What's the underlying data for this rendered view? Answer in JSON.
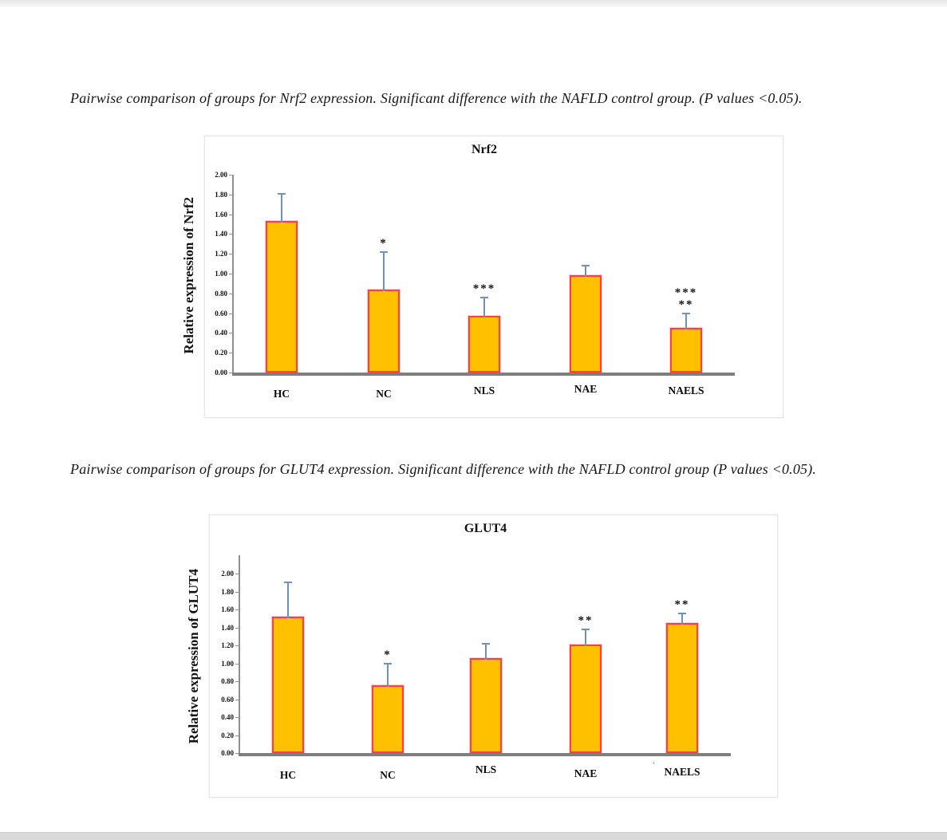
{
  "page": {
    "captions": {
      "nrf2": "Pairwise comparison of groups for Nrf2 expression. Significant difference with the NAFLD control group. (P values <0.05).",
      "glut4": "Pairwise comparison of groups for GLUT4 expression. Significant difference with the NAFLD control group (P values <0.05)."
    },
    "stray_mark": "."
  },
  "chart_data": [
    {
      "type": "bar",
      "title": "Nrf2",
      "ylabel": "Relative expression of Nrf2",
      "xlabel": "",
      "categories": [
        "HC",
        "NC",
        "NLS",
        "NAE",
        "NAELS"
      ],
      "values": [
        1.53,
        0.84,
        0.57,
        0.98,
        0.45
      ],
      "errors_up": [
        0.28,
        0.38,
        0.19,
        0.1,
        0.15
      ],
      "significance": [
        [],
        [
          "*"
        ],
        [
          "***"
        ],
        [],
        [
          "***",
          "**"
        ]
      ],
      "ylim": [
        0,
        2.0
      ],
      "ytick_step": 0.2,
      "ytick_labels": [
        "0.00",
        "0.20",
        "0.40",
        "0.60",
        "0.80",
        "1.00",
        "1.20",
        "1.40",
        "1.60",
        "1.80",
        "2.00"
      ],
      "grid": false,
      "legend": null,
      "bar_color": "#FFC000",
      "bar_border_color": "#FF4040",
      "error_bar_color": "#7390B6"
    },
    {
      "type": "bar",
      "title": "GLUT4",
      "ylabel": "Relative expression of GLUT4",
      "xlabel": "",
      "categories": [
        "HC",
        "NC",
        "NLS",
        "NAE",
        "NAELS"
      ],
      "values": [
        1.52,
        0.76,
        1.06,
        1.21,
        1.45
      ],
      "errors_up": [
        0.38,
        0.24,
        0.16,
        0.17,
        0.11
      ],
      "significance": [
        [],
        [
          "*"
        ],
        [],
        [
          "**"
        ],
        [
          "**"
        ]
      ],
      "ylim": [
        0,
        2.0
      ],
      "ytick_step": 0.2,
      "ytick_labels": [
        "0.00",
        "0.20",
        "0.40",
        "0.60",
        "0.80",
        "1.00",
        "1.20",
        "1.40",
        "1.60",
        "1.80",
        "2.00"
      ],
      "grid": false,
      "legend": null,
      "bar_color": "#FFC000",
      "bar_border_color": "#FF4040",
      "error_bar_color": "#7390B6"
    }
  ]
}
